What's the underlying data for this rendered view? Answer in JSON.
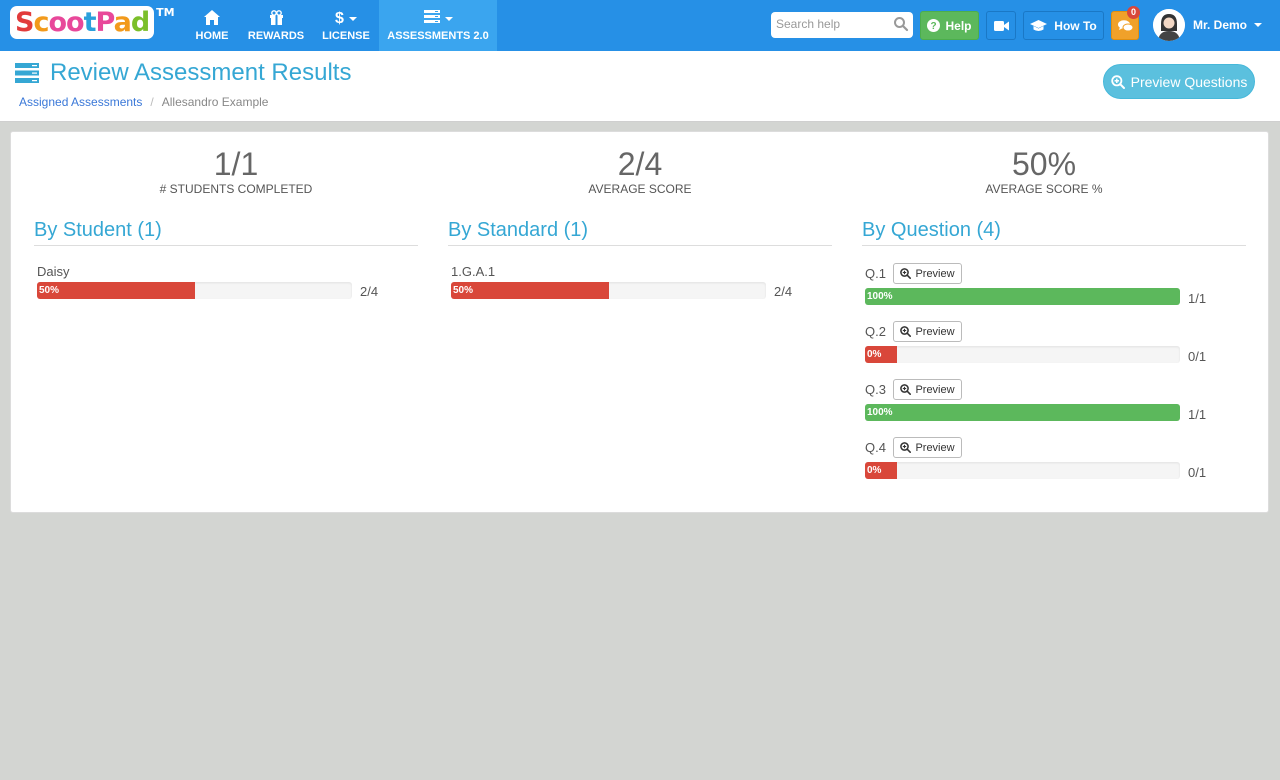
{
  "nav": {
    "logo_text": "ScootPad",
    "logo_tm": "TM",
    "items": [
      {
        "label": "HOME",
        "icon": "home-icon"
      },
      {
        "label": "REWARDS",
        "icon": "gift-icon"
      },
      {
        "label": "LICENSE",
        "icon": "dollar-icon"
      },
      {
        "label": "ASSESSMENTS 2.0",
        "icon": "server-icon",
        "active": true
      }
    ],
    "search_placeholder": "Search help",
    "help_label": "Help",
    "howto_label": "How To",
    "message_count": "0",
    "user_name": "Mr. Demo"
  },
  "header": {
    "title": "Review Assessment Results",
    "breadcrumb": [
      "Assigned Assessments",
      "Allesandro Example"
    ],
    "preview_button": "Preview Questions"
  },
  "stats": [
    {
      "value": "1/1",
      "label": "# STUDENTS COMPLETED"
    },
    {
      "value": "2/4",
      "label": "AVERAGE SCORE"
    },
    {
      "value": "50%",
      "label": "AVERAGE SCORE %"
    }
  ],
  "by_student": {
    "title": "By Student (1)",
    "rows": [
      {
        "name": "Daisy",
        "percent": 50,
        "percent_label": "50%",
        "score": "2/4"
      }
    ]
  },
  "by_standard": {
    "title": "By Standard (1)",
    "rows": [
      {
        "name": "1.G.A.1",
        "percent": 50,
        "percent_label": "50%",
        "score": "2/4"
      }
    ]
  },
  "by_question": {
    "title": "By Question (4)",
    "preview_label": "Preview",
    "rows": [
      {
        "name": "Q.1",
        "percent": 100,
        "percent_label": "100%",
        "score": "1/1"
      },
      {
        "name": "Q.2",
        "percent": 0,
        "percent_label": "0%",
        "score": "0/1"
      },
      {
        "name": "Q.3",
        "percent": 100,
        "percent_label": "100%",
        "score": "1/1"
      },
      {
        "name": "Q.4",
        "percent": 0,
        "percent_label": "0%",
        "score": "0/1"
      }
    ]
  },
  "colors": {
    "navbar": "#2690e6",
    "accent": "#35a7d4",
    "bar_red": "#d9473a",
    "bar_green": "#5cb85c"
  }
}
